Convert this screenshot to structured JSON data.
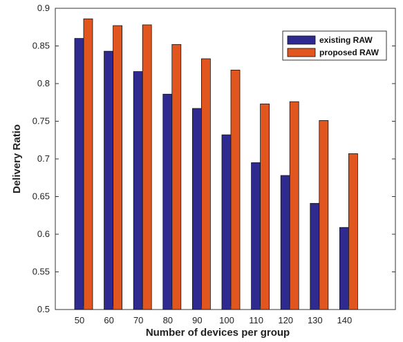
{
  "chart_data": {
    "type": "bar",
    "title": "",
    "xlabel": "Number of devices per group",
    "ylabel": "Delivery Ratio",
    "categories": [
      "50",
      "60",
      "70",
      "80",
      "90",
      "100",
      "110",
      "120",
      "130",
      "140"
    ],
    "ylim": [
      0.5,
      0.9
    ],
    "yticks": [
      "0.5",
      "0.55",
      "0.6",
      "0.65",
      "0.7",
      "0.75",
      "0.8",
      "0.85",
      "0.9"
    ],
    "grid": false,
    "legend_position": "top-right",
    "series": [
      {
        "name": "existing RAW",
        "color": "#2e2a8f",
        "values": [
          0.86,
          0.843,
          0.816,
          0.786,
          0.767,
          0.732,
          0.695,
          0.678,
          0.641,
          0.609
        ]
      },
      {
        "name": "proposed RAW",
        "color": "#e0561e",
        "values": [
          0.886,
          0.877,
          0.878,
          0.852,
          0.833,
          0.818,
          0.773,
          0.776,
          0.751,
          0.707
        ]
      }
    ]
  }
}
